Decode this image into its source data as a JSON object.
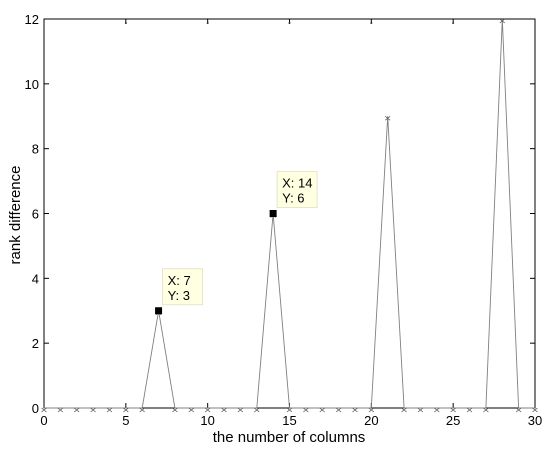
{
  "chart_data": {
    "type": "line",
    "title": "",
    "xlabel": "the number of columns",
    "ylabel": "rank difference",
    "xlim": [
      0,
      30
    ],
    "ylim": [
      0,
      12
    ],
    "xticks": [
      "0",
      "5",
      "10",
      "15",
      "20",
      "25",
      "30"
    ],
    "yticks": [
      "0",
      "2",
      "4",
      "6",
      "8",
      "10",
      "12"
    ],
    "grid": false,
    "series": [
      {
        "x": [
          0,
          1,
          2,
          3,
          4,
          5,
          6,
          7,
          8,
          9,
          10,
          11,
          12,
          13,
          14,
          15,
          16,
          17,
          18,
          19,
          20,
          21,
          22,
          23,
          24,
          25,
          26,
          27,
          28,
          29,
          30
        ],
        "y": [
          0,
          0,
          0,
          0,
          0,
          0,
          0,
          3,
          0,
          0,
          0,
          0,
          0,
          0,
          6,
          0,
          0,
          0,
          0,
          0,
          0,
          9,
          0,
          0,
          0,
          0,
          0,
          0,
          12,
          0,
          0
        ],
        "color": "#808080",
        "marker": "x"
      }
    ],
    "datatips": [
      {
        "x": 7,
        "y": 3,
        "label_x": "X: 7",
        "label_y": "Y: 3"
      },
      {
        "x": 14,
        "y": 6,
        "label_x": "X: 14",
        "label_y": "Y: 6"
      }
    ],
    "top_dots_x": [
      5,
      10,
      15,
      20,
      25
    ]
  }
}
